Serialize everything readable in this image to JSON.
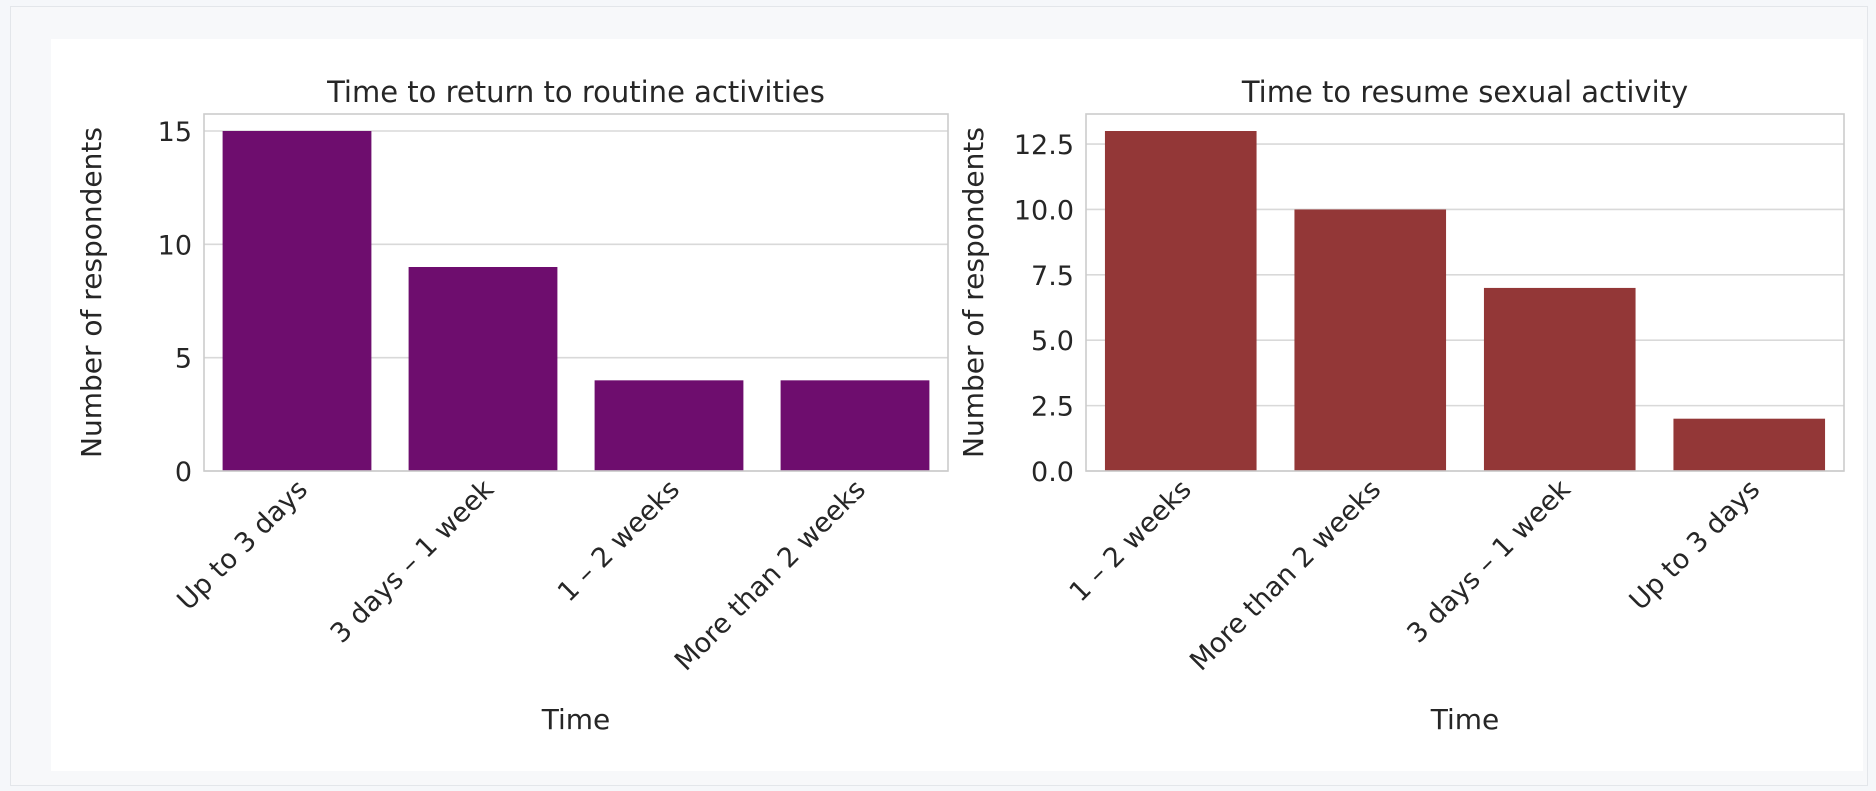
{
  "chart_data": [
    {
      "type": "bar",
      "title": "Time to return to routine activities",
      "xlabel": "Time",
      "ylabel": "Number of respondents",
      "categories": [
        "Up to 3 days",
        "3 days – 1 week",
        "1 – 2 weeks",
        "More than 2 weeks"
      ],
      "values": [
        15,
        9,
        4,
        4
      ],
      "ylim": [
        0,
        15.75
      ],
      "yticks": [
        0,
        5,
        10,
        15
      ],
      "ytick_labels": [
        "0",
        "5",
        "10",
        "15"
      ],
      "grid": true,
      "color": "#6e0d6e"
    },
    {
      "type": "bar",
      "title": "Time to resume sexual activity",
      "xlabel": "Time",
      "ylabel": "Number of respondents",
      "categories": [
        "1 – 2 weeks",
        "More than 2 weeks",
        "3 days – 1 week",
        "Up to 3 days"
      ],
      "values": [
        13,
        10,
        7,
        2
      ],
      "ylim": [
        0,
        13.65
      ],
      "yticks": [
        0,
        2.5,
        5,
        7.5,
        10,
        12.5
      ],
      "ytick_labels": [
        "0.0",
        "2.5",
        "5.0",
        "7.5",
        "10.0",
        "12.5"
      ],
      "grid": true,
      "color": "#933737"
    }
  ]
}
